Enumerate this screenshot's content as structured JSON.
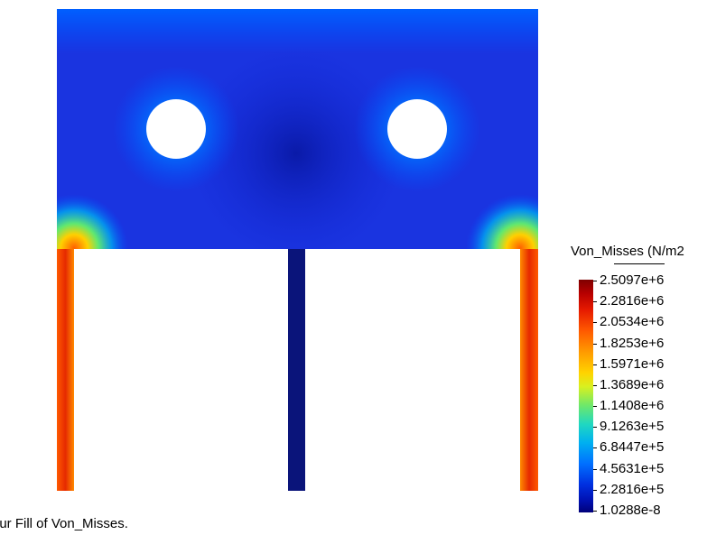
{
  "legend": {
    "title": "Von_Misses (N/m2",
    "ticks": [
      "2.5097e+6",
      "2.2816e+6",
      "2.0534e+6",
      "1.8253e+6",
      "1.5971e+6",
      "1.3689e+6",
      "1.1408e+6",
      "9.1263e+5",
      "6.8447e+5",
      "4.5631e+5",
      "2.2816e+5",
      "1.0288e-8"
    ]
  },
  "caption": "our Fill of Von_Misses.",
  "colors": {
    "max": "#7f0000",
    "high": "#ff5a00",
    "mid": "#6ee86a",
    "low": "#0050ff",
    "min": "#00007a",
    "plate_base": "#1428d8"
  }
}
